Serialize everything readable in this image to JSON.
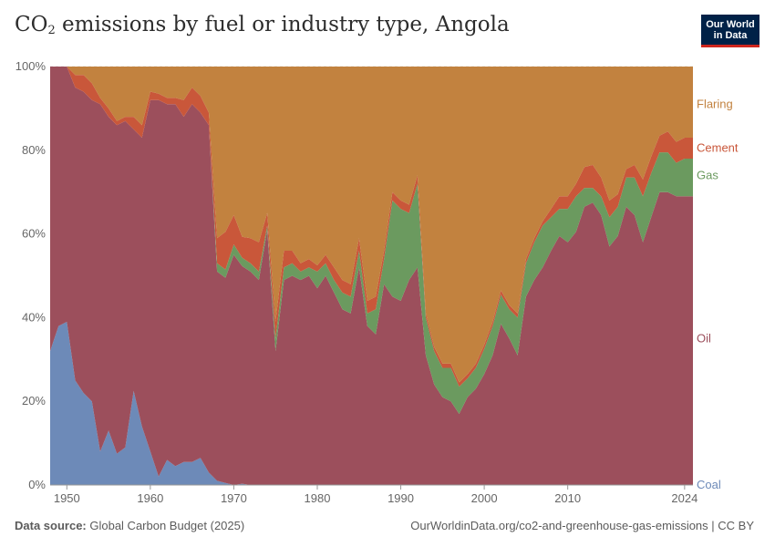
{
  "header": {
    "title_main": "CO",
    "title_sub": "2",
    "title_rest": " emissions by fuel or industry type, Angola",
    "logo_line1": "Our World",
    "logo_line2": "in Data"
  },
  "footer": {
    "source_label": "Data source:",
    "source_text": " Global Carbon Budget (2025)",
    "url_text": "OurWorldinData.org/co2-and-greenhouse-gas-emissions | CC BY"
  },
  "colors": {
    "coal": "#6d8ab8",
    "oil": "#9c4f5c",
    "gas": "#6b9a5f",
    "cement": "#c9573a",
    "flaring": "#c2823f"
  },
  "chart_data": {
    "type": "area",
    "stacked": true,
    "percent": true,
    "title": "CO₂ emissions by fuel or industry type, Angola",
    "xlim": [
      1948,
      2025
    ],
    "ylim": [
      0,
      100
    ],
    "x_ticks": [
      1950,
      1960,
      1970,
      1980,
      1990,
      2000,
      2010,
      2024
    ],
    "y_ticks": [
      0,
      20,
      40,
      60,
      80,
      100
    ],
    "y_tick_labels": [
      "0%",
      "20%",
      "40%",
      "60%",
      "80%",
      "100%"
    ],
    "x": [
      1948,
      1949,
      1950,
      1951,
      1952,
      1953,
      1954,
      1955,
      1956,
      1957,
      1958,
      1959,
      1960,
      1961,
      1962,
      1963,
      1964,
      1965,
      1966,
      1967,
      1968,
      1969,
      1970,
      1971,
      1972,
      1973,
      1974,
      1975,
      1976,
      1977,
      1978,
      1979,
      1980,
      1981,
      1982,
      1983,
      1984,
      1985,
      1986,
      1987,
      1988,
      1989,
      1990,
      1991,
      1992,
      1993,
      1994,
      1995,
      1996,
      1997,
      1998,
      1999,
      2000,
      2001,
      2002,
      2003,
      2004,
      2005,
      2006,
      2007,
      2008,
      2009,
      2010,
      2011,
      2012,
      2013,
      2014,
      2015,
      2016,
      2017,
      2018,
      2019,
      2020,
      2021,
      2022,
      2023,
      2024,
      2025
    ],
    "series": [
      {
        "name": "Coal",
        "values": [
          32,
          38,
          39,
          25,
          22,
          20,
          8,
          13,
          7.5,
          9,
          22.5,
          14,
          8,
          2,
          6,
          4.5,
          5.5,
          5.5,
          6.5,
          3,
          1,
          0.5,
          0,
          0.3,
          0,
          0,
          0,
          0,
          0,
          0,
          0,
          0,
          0,
          0,
          0,
          0,
          0,
          0,
          0,
          0,
          0,
          0,
          0,
          0,
          0,
          0,
          0,
          0,
          0,
          0,
          0,
          0,
          0,
          0,
          0,
          0,
          0,
          0,
          0,
          0,
          0,
          0,
          0,
          0,
          0,
          0,
          0,
          0,
          0,
          0,
          0,
          0,
          0,
          0,
          0,
          0,
          0,
          0
        ]
      },
      {
        "name": "Oil",
        "values": [
          68,
          62,
          61,
          70,
          72,
          72,
          83,
          75,
          78.5,
          78,
          62.5,
          69,
          84,
          90,
          85,
          86.5,
          82.5,
          85.5,
          82.5,
          83,
          50,
          49,
          55,
          52,
          51,
          49,
          61,
          32,
          49,
          50,
          49,
          50,
          47,
          50,
          46,
          42,
          41,
          52,
          38,
          36,
          48,
          45,
          44,
          49,
          52,
          31,
          24,
          21,
          20,
          17,
          21,
          23,
          26.5,
          31,
          38.5,
          35,
          31,
          45,
          49,
          52,
          56,
          59.5,
          58,
          60.5,
          66.5,
          67.5,
          64.5,
          57,
          59.5,
          66.5,
          64.5,
          58,
          64,
          70,
          70,
          69,
          69,
          69
        ]
      },
      {
        "name": "Gas",
        "values": [
          0,
          0,
          0,
          0,
          0,
          0,
          0,
          0,
          0,
          0,
          0,
          0,
          0,
          0,
          0,
          0,
          0,
          0,
          0,
          0,
          2,
          2,
          2.5,
          2,
          2,
          2,
          1,
          3,
          3,
          3,
          2,
          2,
          4,
          3,
          3,
          4,
          4,
          4,
          3,
          6,
          6,
          23,
          22,
          16,
          20,
          9,
          8,
          7,
          8,
          6.5,
          4.5,
          5,
          6,
          7,
          7,
          7,
          9,
          8,
          9,
          10,
          8,
          6.5,
          8,
          8.5,
          4.5,
          3.5,
          4.5,
          7,
          7,
          7,
          9,
          11,
          10.5,
          9.5,
          9.5,
          8,
          9,
          9
        ]
      },
      {
        "name": "Cement",
        "values": [
          0,
          0,
          0,
          3,
          4,
          4,
          1.5,
          2,
          1,
          1,
          3,
          3,
          2,
          1.5,
          1.5,
          1.5,
          4,
          4,
          4,
          3,
          6,
          9,
          7,
          5,
          6,
          7,
          3,
          4,
          4,
          3,
          2,
          2,
          1.5,
          2,
          3,
          3,
          3,
          3,
          3,
          3,
          2,
          2,
          2,
          2,
          2,
          1,
          1,
          1,
          1,
          1,
          1,
          1,
          1,
          1,
          1,
          1,
          1,
          1,
          1,
          1,
          2,
          3,
          3,
          3,
          5,
          5.5,
          4.5,
          4,
          3,
          2,
          3,
          4,
          4,
          4,
          5,
          5,
          5,
          5
        ]
      },
      {
        "name": "Flaring",
        "values": [
          0,
          0,
          0,
          2,
          2,
          4,
          7.5,
          10,
          13,
          12,
          12,
          14,
          6,
          6.5,
          7.5,
          7.5,
          8,
          5,
          7,
          11,
          41,
          39.5,
          35.5,
          40.7,
          41,
          42,
          35,
          61,
          44,
          44,
          47,
          46,
          47.5,
          45,
          48,
          51,
          52,
          41,
          56,
          55,
          44,
          30,
          32,
          33,
          26,
          59,
          67,
          71,
          71,
          75.5,
          73.5,
          71,
          66.5,
          61,
          53.5,
          57,
          59,
          46,
          41,
          37,
          34,
          31,
          31,
          28,
          24,
          23.5,
          26.5,
          32,
          30.5,
          24.5,
          23.5,
          27,
          21.5,
          16.5,
          15.5,
          18,
          17,
          17
        ]
      }
    ],
    "legend": [
      {
        "name": "Flaring",
        "label": "Flaring"
      },
      {
        "name": "Cement",
        "label": "Cement"
      },
      {
        "name": "Gas",
        "label": "Gas"
      },
      {
        "name": "Oil",
        "label": "Oil"
      },
      {
        "name": "Coal",
        "label": "Coal"
      }
    ],
    "legend_position": "right"
  }
}
